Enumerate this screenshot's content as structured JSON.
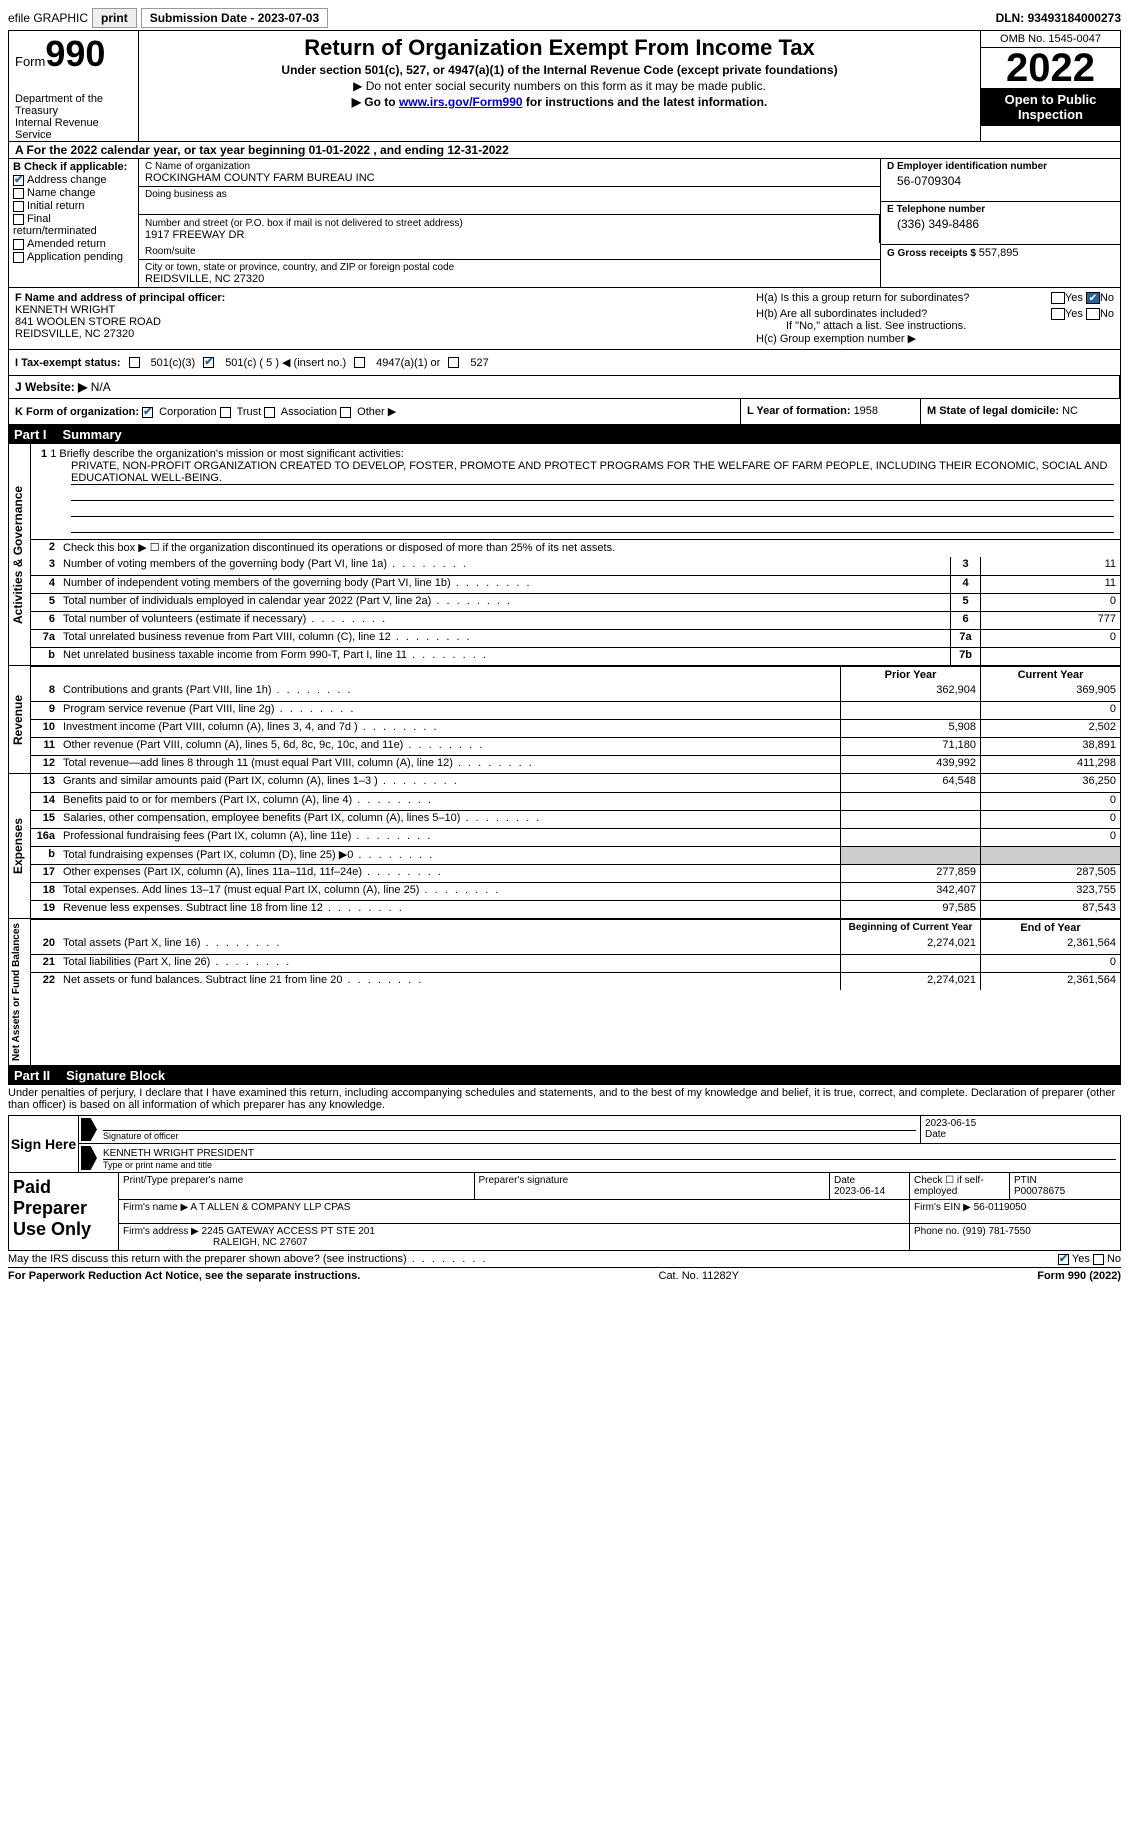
{
  "topbar": {
    "efile": "efile GRAPHIC",
    "print": "print",
    "sub_label": "Submission Date - ",
    "sub_date": "2023-07-03",
    "dln_label": "DLN: ",
    "dln": "93493184000273"
  },
  "header": {
    "form_word": "Form",
    "form_num": "990",
    "dept": "Department of the Treasury\nInternal Revenue Service",
    "title": "Return of Organization Exempt From Income Tax",
    "sub1": "Under section 501(c), 527, or 4947(a)(1) of the Internal Revenue Code (except private foundations)",
    "sub2": "▶ Do not enter social security numbers on this form as it may be made public.",
    "sub3a": "▶ Go to ",
    "sub3_link": "www.irs.gov/Form990",
    "sub3b": " for instructions and the latest information.",
    "omb": "OMB No. 1545-0047",
    "year": "2022",
    "open": "Open to Public Inspection"
  },
  "row_a": "A For the 2022 calendar year, or tax year beginning 01-01-2022   , and ending 12-31-2022",
  "b": {
    "hdr": "B Check if applicable:",
    "addr_change": "Address change",
    "name_change": "Name change",
    "initial": "Initial return",
    "final": "Final return/terminated",
    "amended": "Amended return",
    "app": "Application pending"
  },
  "c": {
    "name_lbl": "C Name of organization",
    "name": "ROCKINGHAM COUNTY FARM BUREAU INC",
    "dba_lbl": "Doing business as",
    "street_lbl": "Number and street (or P.O. box if mail is not delivered to street address)",
    "room_lbl": "Room/suite",
    "street": "1917 FREEWAY DR",
    "city_lbl": "City or town, state or province, country, and ZIP or foreign postal code",
    "city": "REIDSVILLE, NC  27320"
  },
  "d": {
    "ein_lbl": "D Employer identification number",
    "ein": "56-0709304",
    "phone_lbl": "E Telephone number",
    "phone": "(336) 349-8486",
    "gross_lbl": "G Gross receipts $ ",
    "gross": "557,895"
  },
  "f": {
    "lbl": "F Name and address of principal officer:",
    "name": "KENNETH WRIGHT",
    "addr1": "841 WOOLEN STORE ROAD",
    "addr2": "REIDSVILLE, NC  27320"
  },
  "h": {
    "a": "H(a)  Is this a group return for subordinates?",
    "b": "H(b)  Are all subordinates included?",
    "bnote": "If \"No,\" attach a list. See instructions.",
    "c": "H(c)  Group exemption number ▶"
  },
  "i": {
    "lbl": "I  Tax-exempt status:",
    "o1": "501(c)(3)",
    "o2": "501(c) ( 5 ) ◀ (insert no.)",
    "o3": "4947(a)(1) or",
    "o4": "527"
  },
  "j": {
    "lbl": "J  Website: ▶",
    "val": "  N/A"
  },
  "k": {
    "lbl": "K Form of organization:",
    "corp": "Corporation",
    "trust": "Trust",
    "assoc": "Association",
    "other": "Other ▶"
  },
  "l": {
    "lbl": "L Year of formation: ",
    "val": "1958"
  },
  "m": {
    "lbl": "M State of legal domicile: ",
    "val": "NC"
  },
  "part1": {
    "num": "Part I",
    "title": "Summary"
  },
  "mission": {
    "lbl": "1  Briefly describe the organization's mission or most significant activities:",
    "text": "PRIVATE, NON-PROFIT ORGANIZATION CREATED TO DEVELOP, FOSTER, PROMOTE AND PROTECT PROGRAMS FOR THE WELFARE OF FARM PEOPLE, INCLUDING THEIR ECONOMIC, SOCIAL AND EDUCATIONAL WELL-BEING."
  },
  "line2": "Check this box ▶ ☐ if the organization discontinued its operations or disposed of more than 25% of its net assets.",
  "gov_lines": [
    {
      "n": "3",
      "t": "Number of voting members of the governing body (Part VI, line 1a)",
      "box": "3",
      "v": "11"
    },
    {
      "n": "4",
      "t": "Number of independent voting members of the governing body (Part VI, line 1b)",
      "box": "4",
      "v": "11"
    },
    {
      "n": "5",
      "t": "Total number of individuals employed in calendar year 2022 (Part V, line 2a)",
      "box": "5",
      "v": "0"
    },
    {
      "n": "6",
      "t": "Total number of volunteers (estimate if necessary)",
      "box": "6",
      "v": "777"
    },
    {
      "n": "7a",
      "t": "Total unrelated business revenue from Part VIII, column (C), line 12",
      "box": "7a",
      "v": "0"
    },
    {
      "n": "b",
      "t": "Net unrelated business taxable income from Form 990-T, Part I, line 11",
      "box": "7b",
      "v": ""
    }
  ],
  "col_hdrs": {
    "prior": "Prior Year",
    "current": "Current Year"
  },
  "rev_lines": [
    {
      "n": "8",
      "t": "Contributions and grants (Part VIII, line 1h)",
      "p": "362,904",
      "c": "369,905"
    },
    {
      "n": "9",
      "t": "Program service revenue (Part VIII, line 2g)",
      "p": "",
      "c": "0"
    },
    {
      "n": "10",
      "t": "Investment income (Part VIII, column (A), lines 3, 4, and 7d )",
      "p": "5,908",
      "c": "2,502"
    },
    {
      "n": "11",
      "t": "Other revenue (Part VIII, column (A), lines 5, 6d, 8c, 9c, 10c, and 11e)",
      "p": "71,180",
      "c": "38,891"
    },
    {
      "n": "12",
      "t": "Total revenue—add lines 8 through 11 (must equal Part VIII, column (A), line 12)",
      "p": "439,992",
      "c": "411,298"
    }
  ],
  "exp_lines": [
    {
      "n": "13",
      "t": "Grants and similar amounts paid (Part IX, column (A), lines 1–3 )",
      "p": "64,548",
      "c": "36,250"
    },
    {
      "n": "14",
      "t": "Benefits paid to or for members (Part IX, column (A), line 4)",
      "p": "",
      "c": "0"
    },
    {
      "n": "15",
      "t": "Salaries, other compensation, employee benefits (Part IX, column (A), lines 5–10)",
      "p": "",
      "c": "0"
    },
    {
      "n": "16a",
      "t": "Professional fundraising fees (Part IX, column (A), line 11e)",
      "p": "",
      "c": "0"
    },
    {
      "n": "b",
      "t": "Total fundraising expenses (Part IX, column (D), line 25) ▶0",
      "p": "SHADE",
      "c": "SHADE"
    },
    {
      "n": "17",
      "t": "Other expenses (Part IX, column (A), lines 11a–11d, 11f–24e)",
      "p": "277,859",
      "c": "287,505"
    },
    {
      "n": "18",
      "t": "Total expenses. Add lines 13–17 (must equal Part IX, column (A), line 25)",
      "p": "342,407",
      "c": "323,755"
    },
    {
      "n": "19",
      "t": "Revenue less expenses. Subtract line 18 from line 12",
      "p": "97,585",
      "c": "87,543"
    }
  ],
  "na_hdrs": {
    "begin": "Beginning of Current Year",
    "end": "End of Year"
  },
  "na_lines": [
    {
      "n": "20",
      "t": "Total assets (Part X, line 16)",
      "p": "2,274,021",
      "c": "2,361,564"
    },
    {
      "n": "21",
      "t": "Total liabilities (Part X, line 26)",
      "p": "",
      "c": "0"
    },
    {
      "n": "22",
      "t": "Net assets or fund balances. Subtract line 21 from line 20",
      "p": "2,274,021",
      "c": "2,361,564"
    }
  ],
  "part2": {
    "num": "Part II",
    "title": "Signature Block"
  },
  "perjury": "Under penalties of perjury, I declare that I have examined this return, including accompanying schedules and statements, and to the best of my knowledge and belief, it is true, correct, and complete. Declaration of preparer (other than officer) is based on all information of which preparer has any knowledge.",
  "sign": {
    "here": "Sign Here",
    "sig_lbl": "Signature of officer",
    "date": "2023-06-15",
    "date_lbl": "Date",
    "name": "KENNETH WRIGHT  PRESIDENT",
    "name_lbl": "Type or print name and title"
  },
  "prep": {
    "title": "Paid Preparer Use Only",
    "print_lbl": "Print/Type preparer's name",
    "sig_lbl": "Preparer's signature",
    "date_lbl": "Date",
    "date": "2023-06-14",
    "check_lbl": "Check ☐ if self-employed",
    "ptin_lbl": "PTIN",
    "ptin": "P00078675",
    "firm_name_lbl": "Firm's name    ▶ ",
    "firm_name": "A T ALLEN & COMPANY LLP CPAS",
    "firm_ein_lbl": "Firm's EIN ▶ ",
    "firm_ein": "56-0119050",
    "firm_addr_lbl": "Firm's address ▶ ",
    "firm_addr1": "2245 GATEWAY ACCESS PT STE 201",
    "firm_addr2": "RALEIGH, NC  27607",
    "phone_lbl": "Phone no. ",
    "phone": "(919) 781-7550"
  },
  "discuss": "May the IRS discuss this return with the preparer shown above? (see instructions)",
  "footer": {
    "pra": "For Paperwork Reduction Act Notice, see the separate instructions.",
    "cat": "Cat. No. 11282Y",
    "form": "Form 990 (2022)"
  },
  "vlabels": {
    "gov": "Activities & Governance",
    "rev": "Revenue",
    "exp": "Expenses",
    "na": "Net Assets or Fund Balances"
  },
  "yes": "Yes",
  "no": "No"
}
